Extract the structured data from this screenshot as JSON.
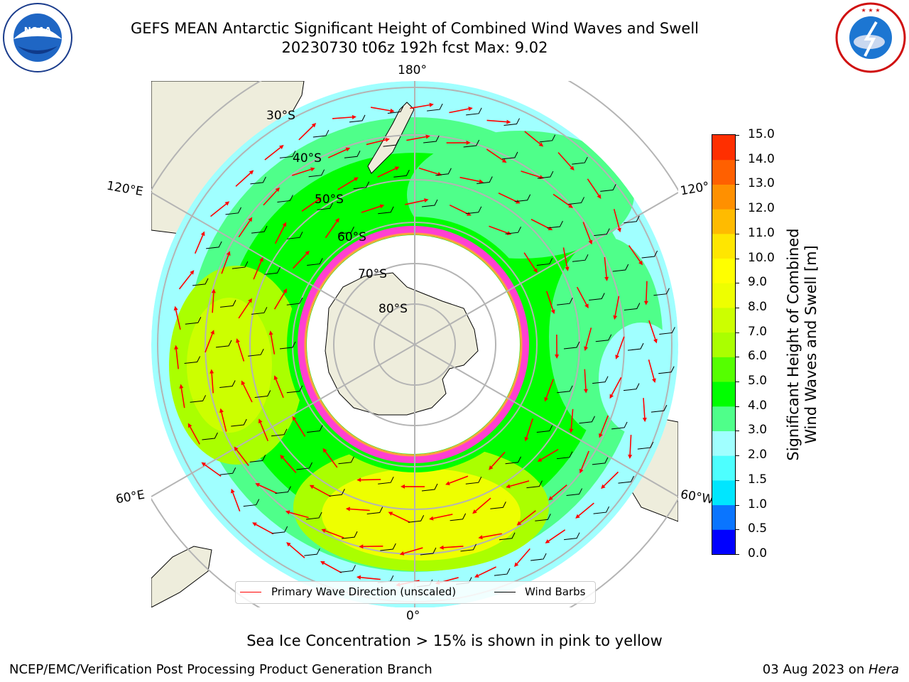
{
  "title": {
    "line1": "GEFS MEAN Antarctic Significant Height of Combined Wind Waves and Swell",
    "line2": "20230730 t06z 192h fcst   Max: 9.02"
  },
  "logos": {
    "left": {
      "icon": "noaa-logo",
      "text": "NOAA",
      "ring_text": "NATIONAL OCEANIC AND ATMOSPHERIC ADMINISTRATION · U.S. DEPARTMENT OF COMMERCE"
    },
    "right": {
      "icon": "nws-logo",
      "ring_text": "NATIONAL WEATHER SERVICE"
    }
  },
  "map": {
    "projection": "south-polar-stereographic",
    "longitude_labels": {
      "top": "180°",
      "left_upper": "120°E",
      "right_upper": "120°",
      "left_lower": "60°E",
      "right_lower": "60°W",
      "bottom": "0°"
    },
    "latitude_labels": [
      "30°S",
      "40°S",
      "50°S",
      "60°S",
      "70°S",
      "80°S"
    ],
    "legend": {
      "wave_label": "Primary Wave Direction (unscaled)",
      "wind_label": "Wind Barbs"
    },
    "colors": {
      "land": "#eeeddc",
      "wave_arrow": "#ff0000",
      "wind_barb": "#000000",
      "graticule": "#b4b4b4"
    }
  },
  "colorbar": {
    "label_line1": "Significant Height of Combined",
    "label_line2": "Wind Waves and Swell [m]",
    "ticks": [
      "0.0",
      "0.5",
      "1.0",
      "1.5",
      "2.0",
      "3.0",
      "4.0",
      "5.0",
      "6.0",
      "7.0",
      "8.0",
      "9.0",
      "10.0",
      "11.0",
      "12.0",
      "13.0",
      "14.0",
      "15.0"
    ],
    "colors": [
      "#0000ff",
      "#0a75ff",
      "#00e6ff",
      "#4dffff",
      "#a0ffff",
      "#4fff8a",
      "#00ff00",
      "#55ff00",
      "#aaff00",
      "#ccff00",
      "#eeff00",
      "#ffff00",
      "#ffe600",
      "#ffbb00",
      "#ff9000",
      "#ff6000",
      "#ff2f00",
      "#ff0000"
    ]
  },
  "note": "Sea Ice Concentration > 15% is shown in pink to yellow",
  "footer": {
    "left": "NCEP/EMC/Verification Post Processing Product Generation Branch",
    "date": "03 Aug 2023 on ",
    "machine": "Hera"
  }
}
